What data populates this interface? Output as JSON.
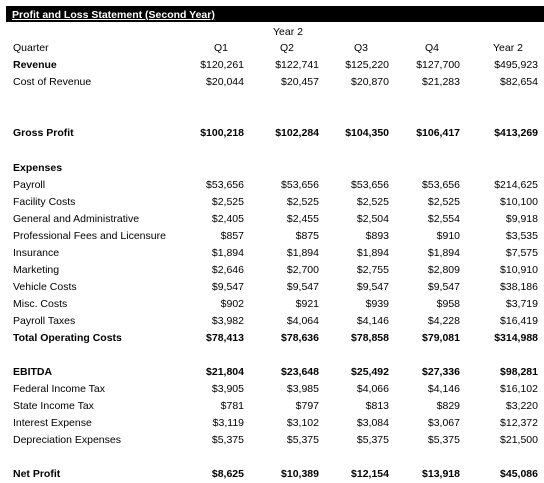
{
  "title": "Profit and Loss Statement (Second Year)",
  "header": {
    "year_label": "Year 2",
    "quarter_label": "Quarter",
    "columns": [
      "Q1",
      "Q2",
      "Q3",
      "Q4",
      "Year 2"
    ]
  },
  "rows": [
    {
      "label": "Revenue",
      "values": [
        "$120,261",
        "$122,741",
        "$125,220",
        "$127,700",
        "$495,923"
      ]
    },
    {
      "label": "Cost of Revenue",
      "values": [
        "$20,044",
        "$20,457",
        "$20,870",
        "$21,283",
        "$82,654"
      ]
    },
    {
      "label": "Gross Profit",
      "values": [
        "$100,218",
        "$102,284",
        "$104,350",
        "$106,417",
        "$413,269"
      ]
    },
    {
      "label": "Expenses",
      "values": [
        "",
        "",
        "",
        "",
        ""
      ]
    },
    {
      "label": "Payroll",
      "values": [
        "$53,656",
        "$53,656",
        "$53,656",
        "$53,656",
        "$214,625"
      ]
    },
    {
      "label": "Facility Costs",
      "values": [
        "$2,525",
        "$2,525",
        "$2,525",
        "$2,525",
        "$10,100"
      ]
    },
    {
      "label": "General and Administrative",
      "values": [
        "$2,405",
        "$2,455",
        "$2,504",
        "$2,554",
        "$9,918"
      ]
    },
    {
      "label": "Professional Fees and Licensure",
      "values": [
        "$857",
        "$875",
        "$893",
        "$910",
        "$3,535"
      ]
    },
    {
      "label": "Insurance",
      "values": [
        "$1,894",
        "$1,894",
        "$1,894",
        "$1,894",
        "$7,575"
      ]
    },
    {
      "label": "Marketing",
      "values": [
        "$2,646",
        "$2,700",
        "$2,755",
        "$2,809",
        "$10,910"
      ]
    },
    {
      "label": "Vehicle Costs",
      "values": [
        "$9,547",
        "$9,547",
        "$9,547",
        "$9,547",
        "$38,186"
      ]
    },
    {
      "label": "Misc. Costs",
      "values": [
        "$902",
        "$921",
        "$939",
        "$958",
        "$3,719"
      ]
    },
    {
      "label": "Payroll Taxes",
      "values": [
        "$3,982",
        "$4,064",
        "$4,146",
        "$4,228",
        "$16,419"
      ]
    },
    {
      "label": "Total Operating Costs",
      "values": [
        "$78,413",
        "$78,636",
        "$78,858",
        "$79,081",
        "$314,988"
      ]
    },
    {
      "label": "EBITDA",
      "values": [
        "$21,804",
        "$23,648",
        "$25,492",
        "$27,336",
        "$98,281"
      ]
    },
    {
      "label": "Federal Income Tax",
      "values": [
        "$3,905",
        "$3,985",
        "$4,066",
        "$4,146",
        "$16,102"
      ]
    },
    {
      "label": "State Income Tax",
      "values": [
        "$781",
        "$797",
        "$813",
        "$829",
        "$3,220"
      ]
    },
    {
      "label": "Interest Expense",
      "values": [
        "$3,119",
        "$3,102",
        "$3,084",
        "$3,067",
        "$12,372"
      ]
    },
    {
      "label": "Depreciation Expenses",
      "values": [
        "$5,375",
        "$5,375",
        "$5,375",
        "$5,375",
        "$21,500"
      ]
    },
    {
      "label": "Net Profit",
      "values": [
        "$8,625",
        "$10,389",
        "$12,154",
        "$13,918",
        "$45,086"
      ]
    }
  ]
}
